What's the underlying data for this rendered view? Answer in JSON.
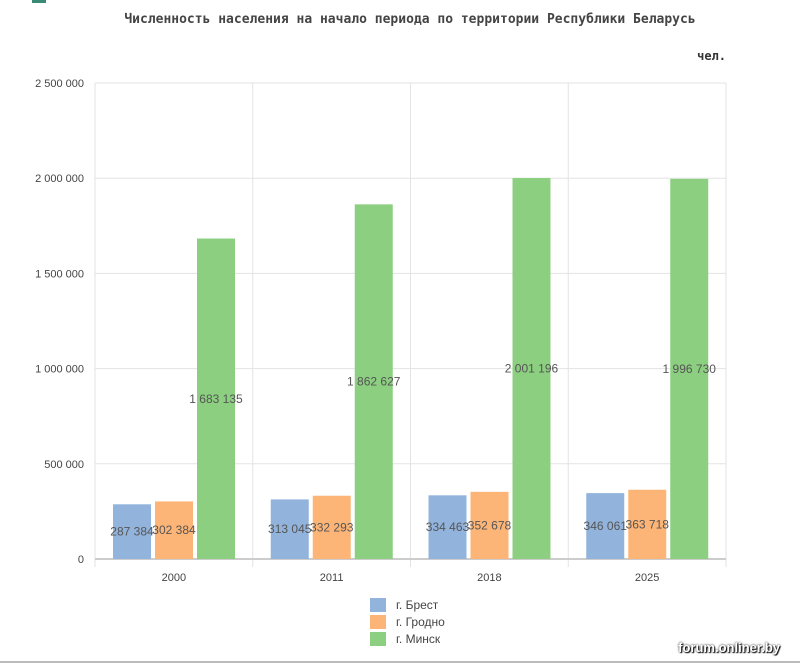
{
  "chart_data": {
    "type": "bar",
    "title": "Численность населения на начало периода по территории Республики Беларусь",
    "unit": "чел.",
    "categories": [
      "2000",
      "2011",
      "2018",
      "2025"
    ],
    "series": [
      {
        "name": "г. Брест",
        "color": "#92b4dc",
        "values": [
          287384,
          313045,
          334463,
          346061
        ],
        "labels": [
          "287 384",
          "313 045",
          "334 463",
          "346 061"
        ]
      },
      {
        "name": "г. Гродно",
        "color": "#fdb577",
        "values": [
          302384,
          332293,
          352678,
          363718
        ],
        "labels": [
          "302 384",
          "332 293",
          "352 678",
          "363 718"
        ]
      },
      {
        "name": "г. Минск",
        "color": "#8ccf80",
        "values": [
          1683135,
          1862627,
          2001196,
          1996730
        ],
        "labels": [
          "1 683 135",
          "1 862 627",
          "2 001 196",
          "1 996 730"
        ]
      }
    ],
    "ylim": [
      0,
      2500000
    ],
    "yticks": [
      0,
      500000,
      1000000,
      1500000,
      2000000,
      2500000
    ],
    "ytick_labels": [
      "0",
      "500 000",
      "1 000 000",
      "1 500 000",
      "2 000 000",
      "2 500 000"
    ],
    "grid": true,
    "legend": "bottom-center"
  },
  "watermark": "forum.onliner.by"
}
